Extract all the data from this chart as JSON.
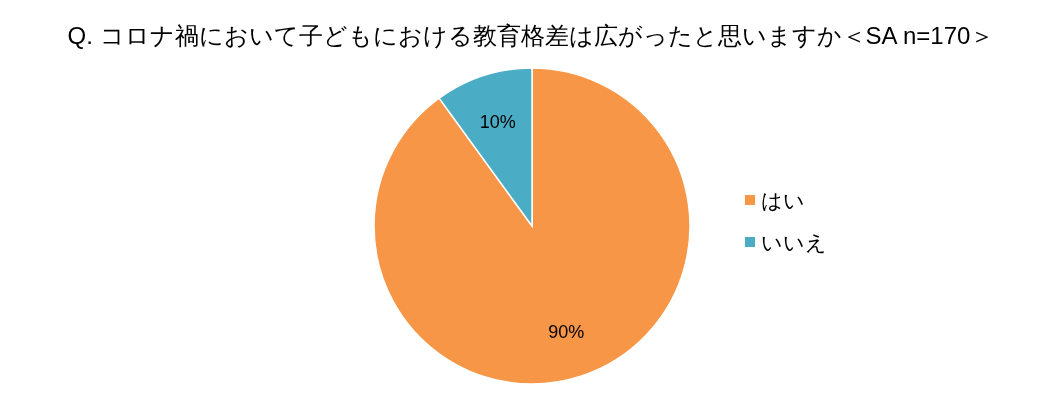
{
  "chart_data": {
    "type": "pie",
    "title": "Q. コロナ禍において子どもにおける教育格差は広がったと思いますか＜SA n=170＞",
    "categories": [
      "はい",
      "いいえ"
    ],
    "values": [
      90,
      10
    ],
    "colors": [
      "#f79646",
      "#4bacc6"
    ],
    "value_labels": [
      "90%",
      "10%"
    ],
    "legend": "right"
  }
}
